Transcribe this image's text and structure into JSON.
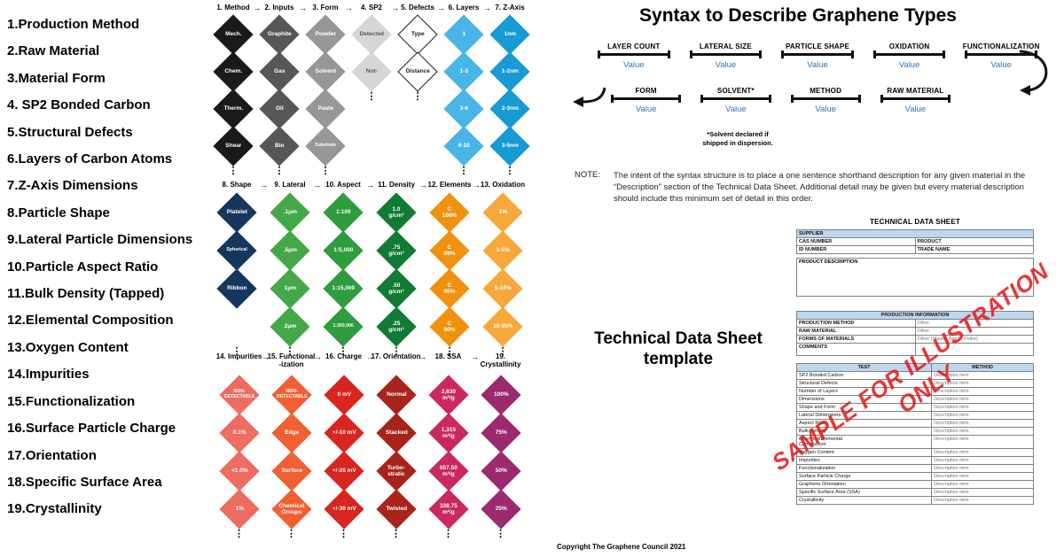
{
  "page": {
    "title": "Syntax to Describe Graphene Types",
    "copyright": "Copyright The Graphene Council 2021"
  },
  "icons": {
    "arrow_right": "→",
    "ellipsis": "⋮"
  },
  "property_list": [
    "1.Production Method",
    "2.Raw Material",
    "3.Material Form",
    "4. SP2 Bonded Carbon",
    "5.Structural Defects",
    "6.Layers of Carbon Atoms",
    "7.Z-Axis Dimensions",
    "8.Particle Shape",
    "9.Lateral Particle Dimensions",
    "10.Particle Aspect Ratio",
    "11.Bulk Density (Tapped)",
    "12.Elemental Composition",
    "13.Oxygen Content",
    "14.Impurities",
    "15.Functionalization",
    "16.Surface Particle Charge",
    "17.Orientation",
    "18.Specific Surface Area",
    "19.Crystallinity"
  ],
  "bands": [
    {
      "columns": [
        {
          "header": "1. Method",
          "color": "#1a1a1a",
          "values": [
            "Mech.",
            "Chem.",
            "Therm.",
            "Shear"
          ]
        },
        {
          "header": "2. Inputs",
          "color": "#575757",
          "values": [
            "Graphite",
            "Gas",
            "Oil",
            "Bio"
          ]
        },
        {
          "header": "3. Form",
          "color": "#979797",
          "values": [
            "Powder",
            "Solvent",
            "Paste",
            "Substrate"
          ]
        },
        {
          "header": "4. SP2",
          "color": "#d6d6d6",
          "text_color": "#595959",
          "values": [
            "Detected",
            "Not-"
          ]
        },
        {
          "header": "5. Defects",
          "color": "#ffffff",
          "text_color": "#1a1a1a",
          "border_color": "#1a1a1a",
          "values": [
            "Type",
            "Distance"
          ]
        },
        {
          "header": "6. Layers",
          "color": "#49b5e7",
          "values": [
            "1",
            "1-3",
            "3-6",
            "6-10"
          ]
        },
        {
          "header": "7. Z-Axis",
          "color": "#189ad2",
          "values": [
            "1nm",
            "1-2nm",
            "2-3nm",
            "3-5nm"
          ]
        }
      ]
    },
    {
      "columns": [
        {
          "header": "8. Shape",
          "color": "#17365d",
          "values": [
            "Platelet",
            "Spherical",
            "Ribbon",
            null
          ]
        },
        {
          "header": "9. Lateral",
          "color": "#44a848",
          "values": [
            ".1μm",
            ".5μm",
            "1μm",
            "2μm"
          ]
        },
        {
          "header": "10. Aspect",
          "color": "#2f9c3e",
          "values": [
            "1:100",
            "1:5,000",
            "1:15,000",
            "1:300,000"
          ]
        },
        {
          "header": "11. Density",
          "color": "#117a35",
          "values": [
            "1.0\ng/cm³",
            ".75\ng/cm³",
            ".50\ng/cm³",
            ".25\ng/cm³"
          ]
        },
        {
          "header": "12. Elements",
          "color": "#f0920f",
          "values": [
            "C\n100%",
            "C\n99%",
            "C\n95%",
            "C\n90%"
          ]
        },
        {
          "header": "13. Oxidation",
          "color": "#f7a83a",
          "values": [
            "1%",
            "1-5%",
            "5-10%",
            "10-35%"
          ]
        }
      ]
    },
    {
      "columns": [
        {
          "header": "14. Impurities",
          "color": "#ee6c60",
          "values": [
            "NON-\nDETECTABLE",
            "0.1%",
            "<1.0%",
            "1%"
          ]
        },
        {
          "header": "15. Functional\n-ization",
          "color": "#f15f33",
          "values": [
            "NON-\nDETECTABLE",
            "Edge",
            "Surface",
            "Chemical\nGroups"
          ]
        },
        {
          "header": "16. Charge",
          "color": "#d8251f",
          "values": [
            "0 mV",
            "+/-10 mV",
            "+/-20 mV",
            "+/-30 mV"
          ]
        },
        {
          "header": "17. Orientation",
          "color": "#a8241b",
          "values": [
            "Normal",
            "Stacked",
            "Turbo-\nstratic",
            "Twisted"
          ]
        },
        {
          "header": "18. SSA",
          "color": "#c9295f",
          "values": [
            "2,630\nm²/g",
            "1,315\nm²/g",
            "657.50\nm²/g",
            "328.75\nm²/g"
          ]
        },
        {
          "header": "19. Crystallinity",
          "color": "#9c2a6e",
          "values": [
            "100%",
            "75%",
            "50%",
            "25%"
          ]
        }
      ]
    }
  ],
  "syntax": {
    "row1": [
      {
        "label": "LAYER COUNT",
        "value": "Value"
      },
      {
        "label": "LATERAL SIZE",
        "value": "Value"
      },
      {
        "label": "PARTICLE SHAPE",
        "value": "Value"
      },
      {
        "label": "OXIDATION",
        "value": "Value"
      },
      {
        "label": "FUNCTIONALIZATION",
        "value": "Value"
      }
    ],
    "row2": [
      {
        "label": "FORM",
        "value": "Value"
      },
      {
        "label": "SOLVENT*",
        "value": "Value"
      },
      {
        "label": "METHOD",
        "value": "Value"
      },
      {
        "label": "RAW MATERIAL",
        "value": "Value"
      }
    ],
    "footnote": "*Solvent declared if\nshipped in dispersion."
  },
  "note": {
    "label": "NOTE:",
    "text": "The intent of the syntax structure is to place a one sentence shorthand description for any given material in the “Description” section of the Technical Data Sheet. Additional detail may be given but every material description should include this minimum set of detail in this order."
  },
  "tds": {
    "template_label": "Technical Data Sheet\ntemplate",
    "title": "TECHNICAL DATA SHEET",
    "supplier_label": "SUPPLIER",
    "id_rows": [
      [
        "CAS NUMBER",
        "PRODUCT"
      ],
      [
        "ID NUMBER",
        "TRADE NAME"
      ]
    ],
    "product_description_label": "PRODUCT DESCRIPTION",
    "production_header": "PRODUCTION INFORMATION",
    "production_rows": [
      [
        "PRODUCTION METHOD",
        "Other"
      ],
      [
        "RAW MATERIAL",
        "Other"
      ],
      [
        "FORMS OF MATERIALS",
        "Other (Master Batch, Pellet)"
      ],
      [
        "COMMENTS",
        ""
      ]
    ],
    "test_header": [
      "TEST",
      "METHOD"
    ],
    "method_placeholder": "Description item",
    "test_rows": [
      "SP2 Bonded Carbon",
      "Structural Defects",
      "Number of Layers",
      "Dimensions",
      "Shape and Form",
      "Lateral Dimensions",
      "Aspect Ratio",
      "Bulk Density",
      "Chemical/Elemental\nComposition",
      "Oxygen Content",
      "Impurities",
      "Functionalization",
      "Surface Particle Charge",
      "Graphene Orientation",
      "Specific Surface Area (SSA)",
      "Crystallinity"
    ],
    "watermark": "SAMPLE FOR ILLUSTRATION ONLY"
  }
}
